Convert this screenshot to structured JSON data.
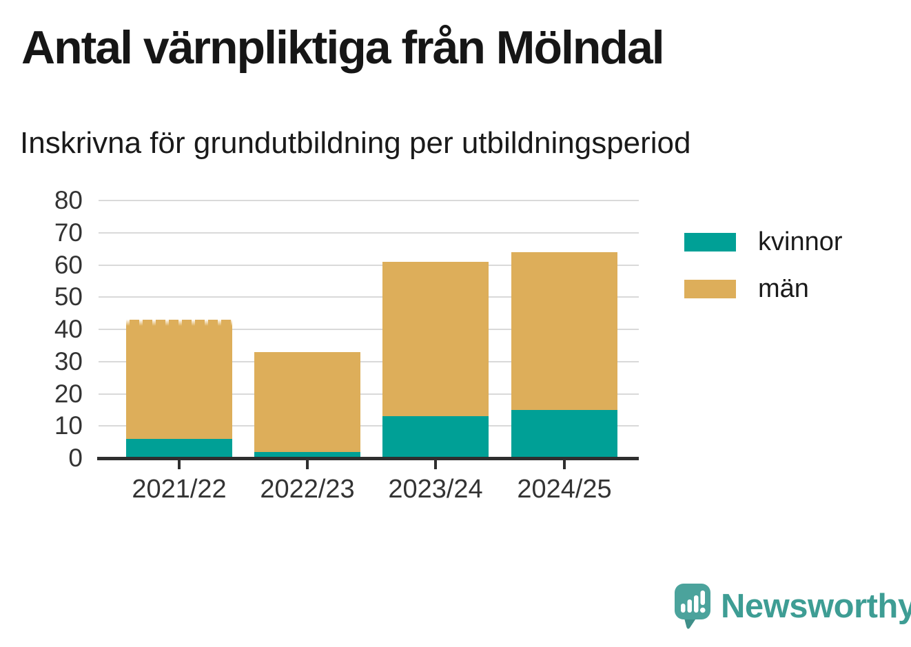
{
  "title": "Antal värnpliktiga från Mölndal",
  "subtitle": "Inskrivna för grundutbildning per utbildningsperiod",
  "footer": {
    "brand": "Newsworthy",
    "logo_icon": "newsworthy-speech-bubble-bar-chart-icon"
  },
  "colors": {
    "kvinnor": "#00A096",
    "man": "#DDAE5A",
    "axis_line": "#2F2F2F",
    "grid_line": "#D9D9D9",
    "tick_text": "#333333",
    "title_text": "#161616",
    "brand_teal": "#3E9D94",
    "logo_teal": "#4BA39C",
    "background": "#FFFFFF"
  },
  "chart_data": {
    "type": "bar",
    "stacked": true,
    "title": "Antal värnpliktiga från Mölndal",
    "subtitle": "Inskrivna för grundutbildning per utbildningsperiod",
    "categories": [
      "2021/22",
      "2022/23",
      "2023/24",
      "2024/25"
    ],
    "series": [
      {
        "name": "kvinnor",
        "color": "#00A096",
        "values": [
          6,
          2,
          13,
          15
        ]
      },
      {
        "name": "män",
        "color": "#DDAE5A",
        "values": [
          37,
          31,
          48,
          49
        ]
      }
    ],
    "stack_totals": [
      43,
      33,
      61,
      64
    ],
    "ylim": [
      0,
      80
    ],
    "yticks": [
      0,
      10,
      20,
      30,
      40,
      50,
      60,
      70,
      80
    ],
    "xlabel": "",
    "ylabel": "",
    "grid": true,
    "legend_position": "right",
    "legend_items": [
      "kvinnor",
      "män"
    ],
    "faded_top_bar_index": 0
  }
}
